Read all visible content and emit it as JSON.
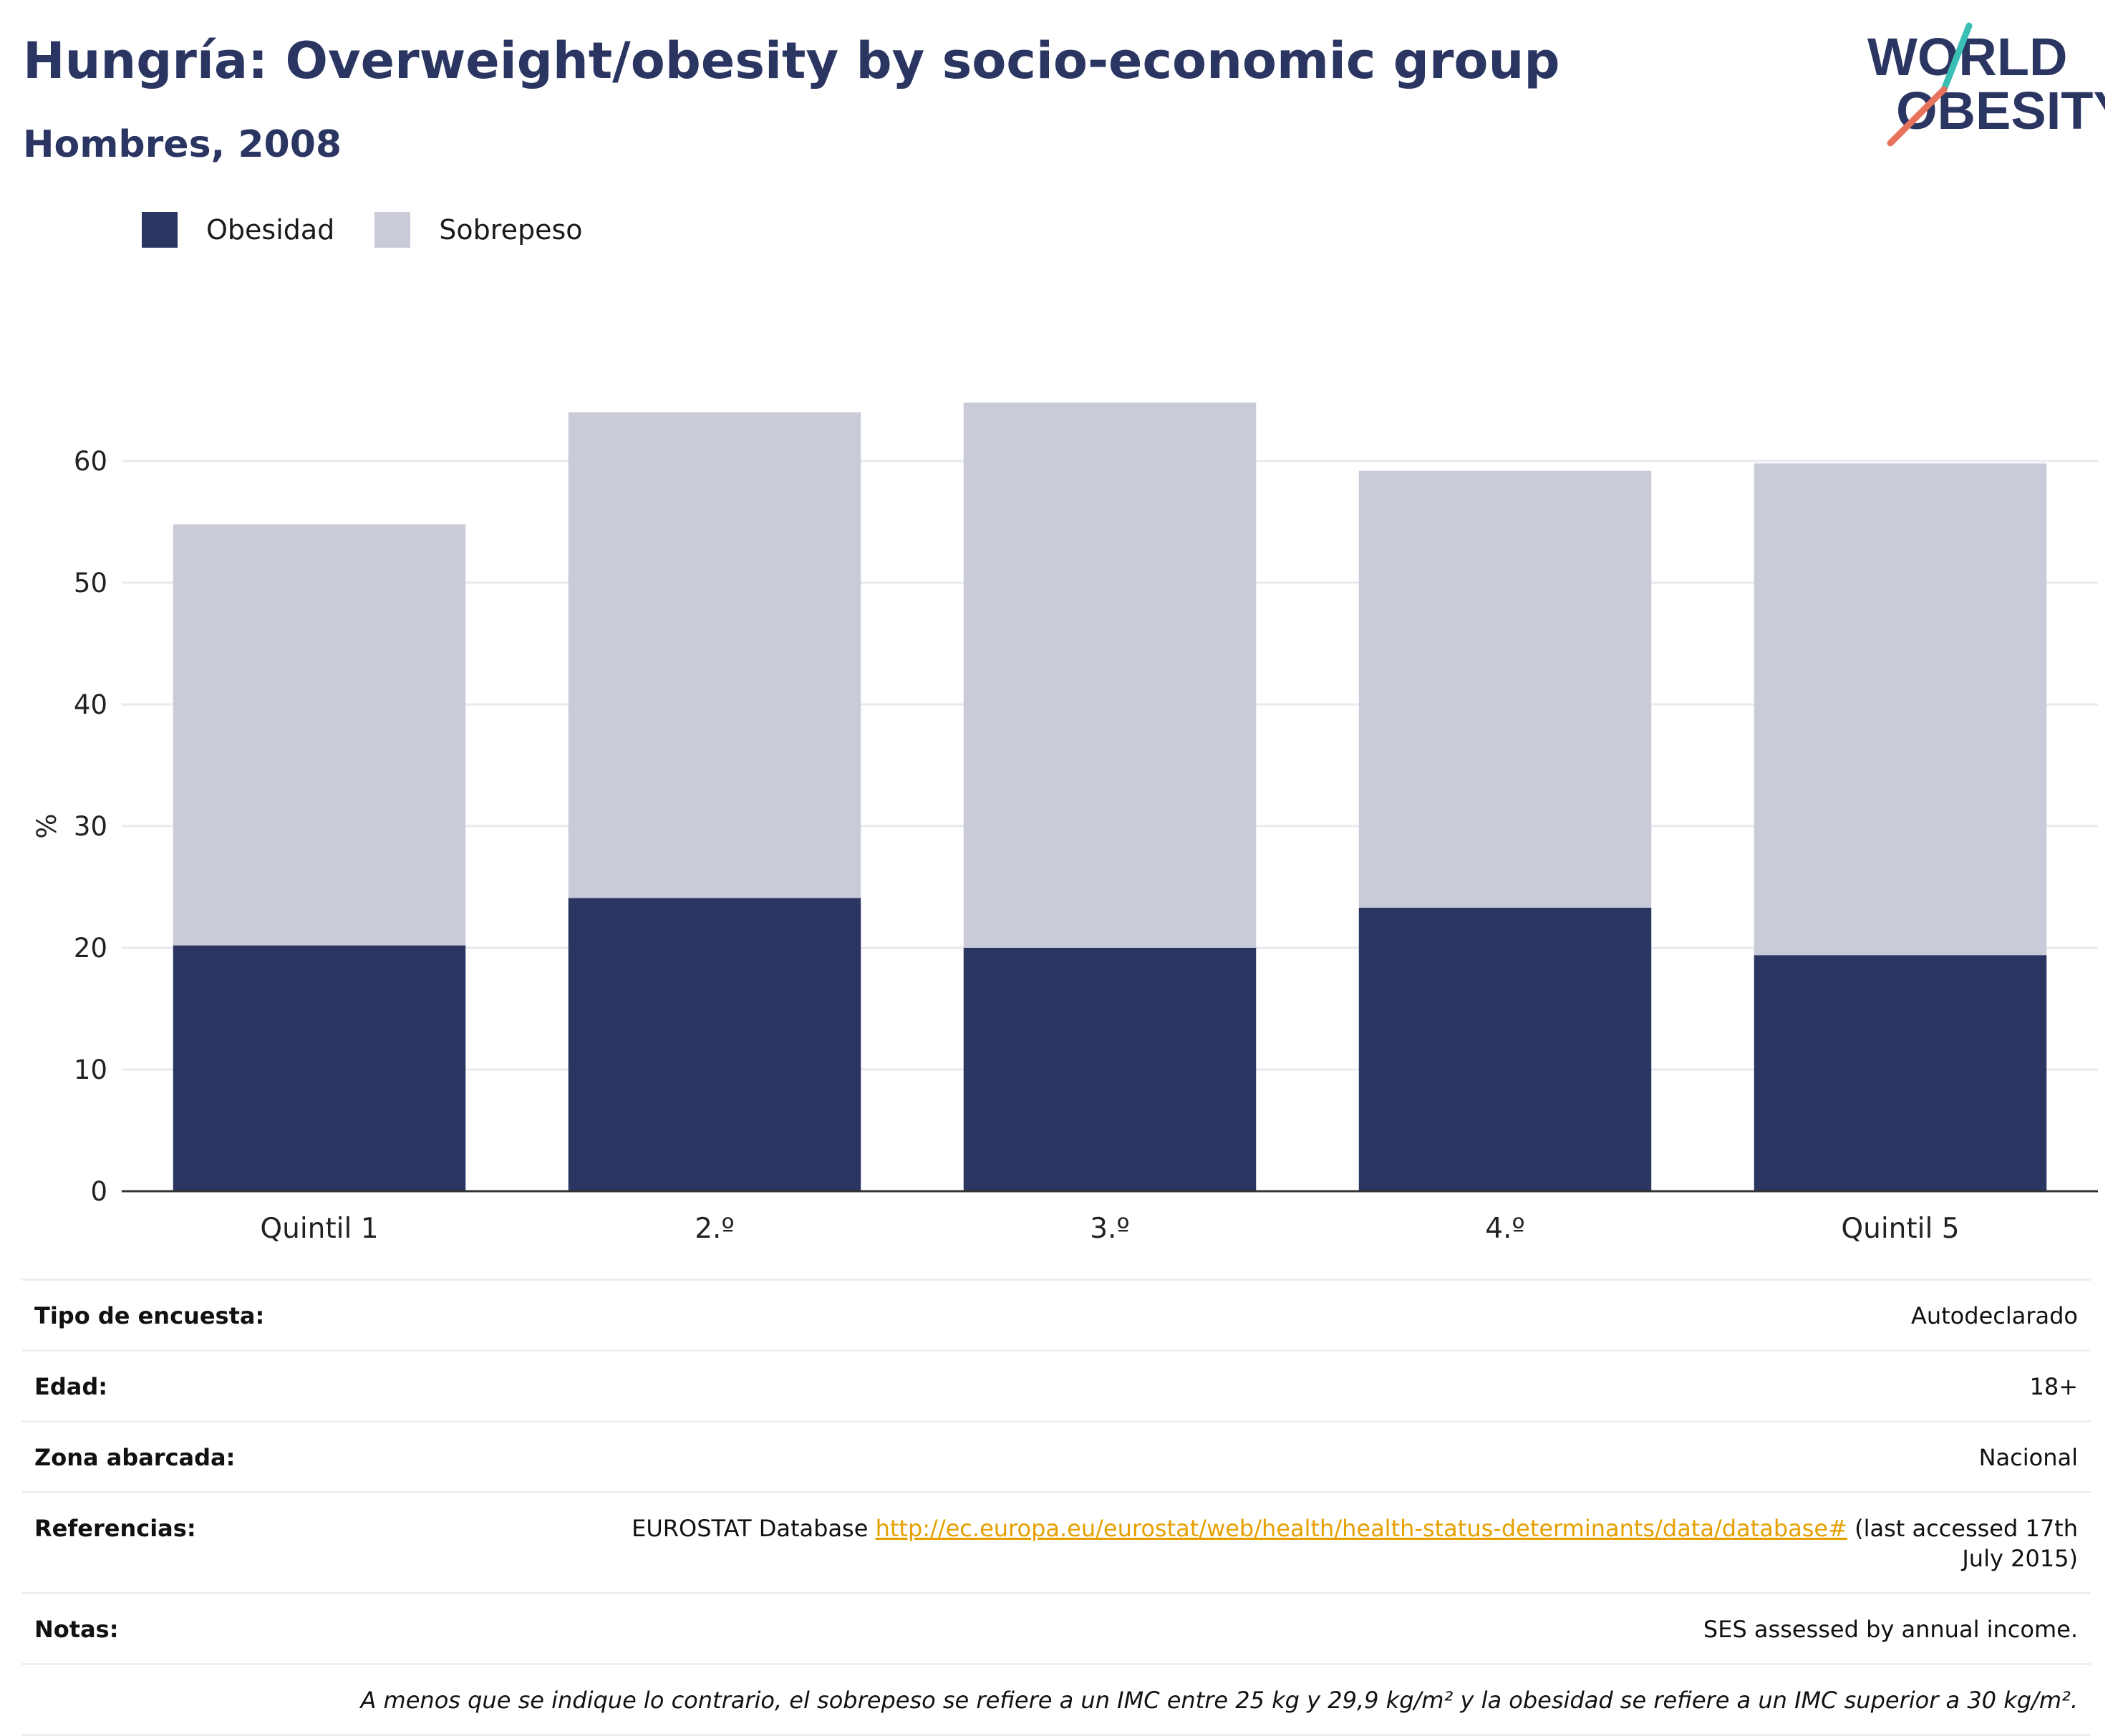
{
  "title": "Hungría: Overweight/obesity by socio-economic group",
  "subtitle": "Hombres, 2008",
  "logo": {
    "line1": "WORLD",
    "line2": "OBESITY"
  },
  "legend": [
    {
      "label": "Obesidad",
      "color": "#2a3562"
    },
    {
      "label": "Sobrepeso",
      "color": "#c9ccd8"
    }
  ],
  "colors": {
    "obesity": "#2a3562",
    "overweight": "#c9ccd8",
    "grid": "#e8eaf0",
    "axis": "#333333",
    "accent_teal": "#3bbfb5",
    "accent_coral": "#e8735c"
  },
  "chart_data": {
    "type": "bar",
    "stacked": true,
    "categories": [
      "Quintil 1",
      "2.º",
      "3.º",
      "4.º",
      "Quintil 5"
    ],
    "series": [
      {
        "name": "Obesidad",
        "values": [
          20.2,
          24.1,
          20.0,
          23.3,
          19.4
        ]
      },
      {
        "name": "Sobrepeso",
        "values": [
          34.6,
          39.9,
          44.8,
          35.9,
          40.4
        ]
      }
    ],
    "ylabel": "%",
    "ylim": [
      0,
      70
    ],
    "yticks": [
      0,
      10,
      20,
      30,
      40,
      50,
      60
    ],
    "grid": true
  },
  "info": {
    "survey_label": "Tipo de encuesta:",
    "survey_value": "Autodeclarado",
    "age_label": "Edad:",
    "age_value": "18+",
    "area_label": "Zona abarcada:",
    "area_value": "Nacional",
    "refs_label": "Referencias:",
    "refs_prefix": "EUROSTAT Database ",
    "refs_link": "http://ec.europa.eu/eurostat/web/health/health-status-determinants/data/database#",
    "refs_suffix": " (last accessed 17th July 2015)",
    "notes_label": "Notas:",
    "notes_value": "SES assessed by annual income.",
    "footnote": "A menos que se indique lo contrario, el sobrepeso se refiere a un IMC entre 25 kg y 29,9 kg/m² y la obesidad se refiere a un IMC superior a 30 kg/m²."
  }
}
